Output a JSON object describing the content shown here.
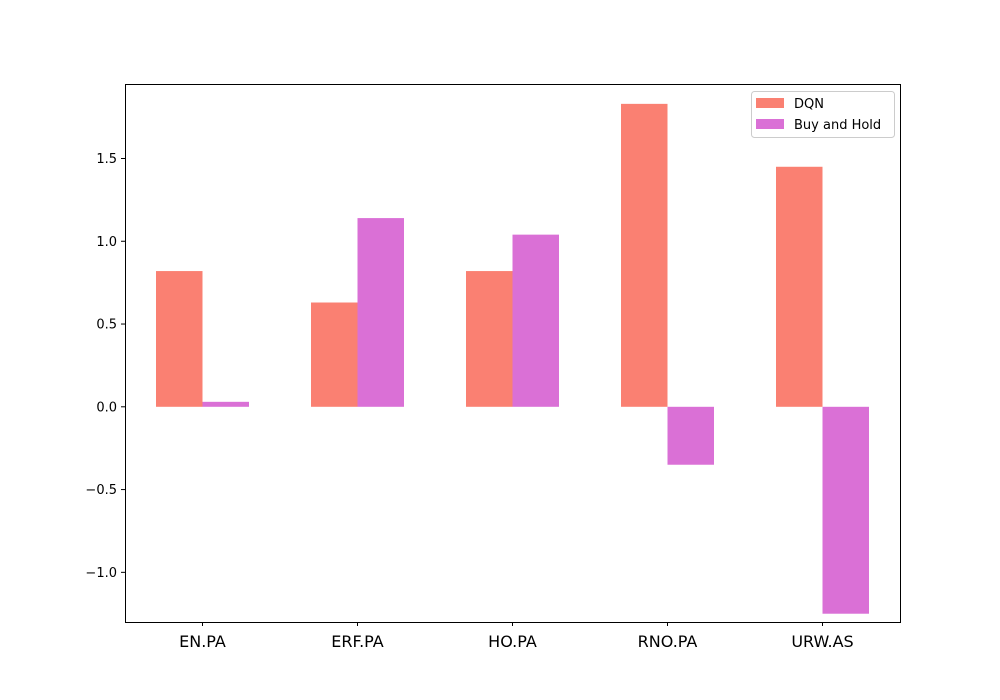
{
  "chart_data": {
    "type": "bar",
    "categories": [
      "EN.PA",
      "ERF.PA",
      "HO.PA",
      "RNO.PA",
      "URW.AS"
    ],
    "series": [
      {
        "name": "DQN",
        "values": [
          0.82,
          0.63,
          0.82,
          1.83,
          1.45
        ],
        "color": "#fa8072"
      },
      {
        "name": "Buy and Hold",
        "values": [
          0.03,
          1.14,
          1.04,
          -0.35,
          -1.25
        ],
        "color": "#da70d6"
      }
    ],
    "ylim": [
      -1.3,
      1.95
    ],
    "yticks": [
      -1.0,
      -0.5,
      0.0,
      0.5,
      1.0,
      1.5
    ],
    "ytick_labels": [
      "−1.0",
      "−0.5",
      "0.0",
      "0.5",
      "1.0",
      "1.5"
    ],
    "title": "",
    "xlabel": "",
    "ylabel": "",
    "legend": {
      "position": "top-right"
    },
    "grid": false
  }
}
